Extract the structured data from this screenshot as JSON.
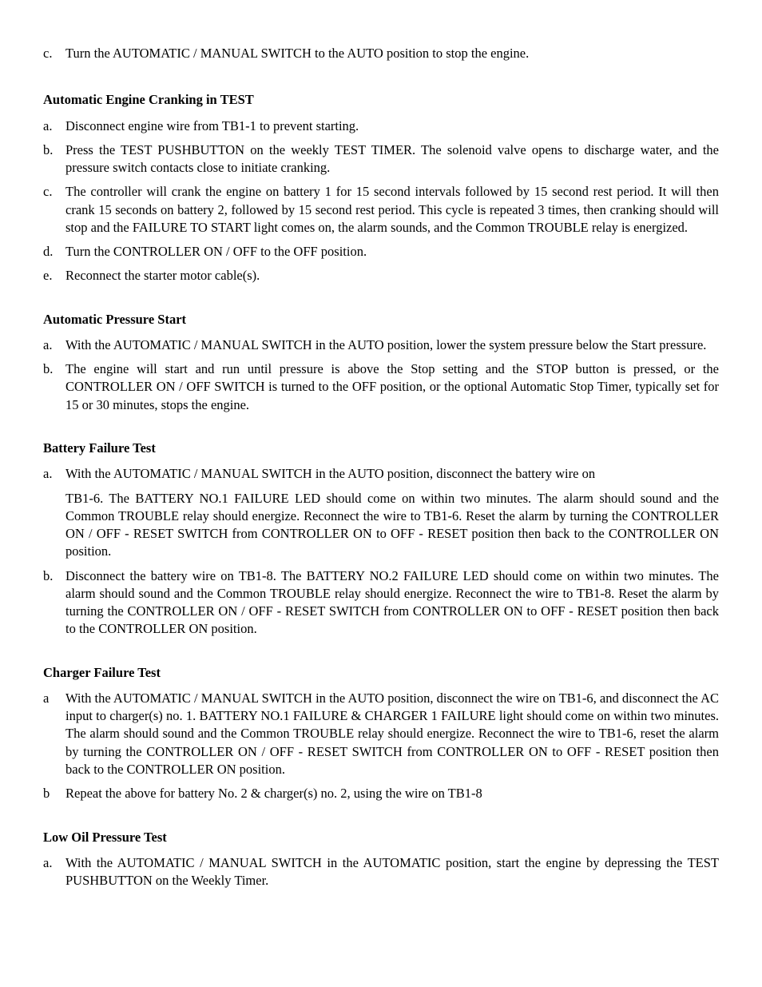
{
  "item_c_top": {
    "marker": "c.",
    "text": "Turn the AUTOMATIC / MANUAL SWITCH to the AUTO position to stop the engine."
  },
  "section1": {
    "heading": "Automatic Engine Cranking in TEST",
    "a": {
      "marker": "a.",
      "text": "Disconnect engine wire from TB1-1 to prevent starting."
    },
    "b": {
      "marker": "b.",
      "text": "Press the TEST PUSHBUTTON on the weekly TEST TIMER.  The solenoid valve opens to discharge water, and the pressure switch contacts close to initiate cranking."
    },
    "c": {
      "marker": "c.",
      "text": "The controller will crank the engine on battery 1 for 15 second intervals followed by 15 second rest period. It will then crank 15 seconds on battery 2, followed by 15 second rest period. This cycle is repeated 3 times, then cranking should will stop and the FAILURE TO START light comes on, the alarm sounds, and the Common TROUBLE relay is energized."
    },
    "d": {
      "marker": "d.",
      "text": "Turn the CONTROLLER ON / OFF to the OFF position."
    },
    "e": {
      "marker": "e.",
      "text": "Reconnect the starter motor cable(s)."
    }
  },
  "section2": {
    "heading": "Automatic Pressure Start",
    "a": {
      "marker": "a.",
      "text": "With the AUTOMATIC / MANUAL SWITCH in the AUTO position, lower the system pressure below the Start pressure."
    },
    "b": {
      "marker": "b.",
      "text": "The engine will start and run until pressure is above the Stop setting and the STOP button is pressed, or the CONTROLLER ON / OFF SWITCH is turned to the OFF position, or the optional Automatic Stop Timer, typically set for 15 or 30 minutes, stops the engine."
    }
  },
  "section3": {
    "heading": "Battery Failure Test",
    "a": {
      "marker": "a.",
      "text": "With the AUTOMATIC / MANUAL SWITCH in the AUTO position, disconnect the battery wire on"
    },
    "a_cont": "TB1-6. The BATTERY NO.1 FAILURE LED should come on within two minutes. The alarm should sound and the Common TROUBLE relay should energize. Reconnect the wire to TB1-6. Reset the alarm by turning the CONTROLLER ON / OFF - RESET SWITCH from CONTROLLER ON to OFF - RESET position then back to the CONTROLLER ON position.",
    "b": {
      "marker": "b.",
      "text": "Disconnect the battery wire on TB1-8. The BATTERY NO.2 FAILURE LED should come on within two minutes. The alarm should sound and the Common TROUBLE relay should energize. Reconnect the wire to TB1-8. Reset the alarm by turning the CONTROLLER ON / OFF - RESET SWITCH from CONTROLLER ON to OFF - RESET position then back to the CONTROLLER ON position."
    }
  },
  "section4": {
    "heading": "Charger Failure Test",
    "a": {
      "marker": "a",
      "text": "With the AUTOMATIC / MANUAL SWITCH in the AUTO position, disconnect the wire on TB1-6, and disconnect the AC input to charger(s) no. 1. BATTERY NO.1 FAILURE & CHARGER 1 FAILURE light should come on within two minutes. The alarm should sound and the Common TROUBLE relay should energize. Reconnect the wire to TB1-6, reset the alarm by turning the CONTROLLER ON / OFF - RESET SWITCH from CONTROLLER ON to OFF - RESET position then back to the CONTROLLER ON position."
    },
    "b": {
      "marker": "b",
      "text": "Repeat the above for battery No. 2 & charger(s) no. 2, using the wire on TB1-8"
    }
  },
  "section5": {
    "heading": "Low Oil Pressure Test",
    "a": {
      "marker": "a.",
      "text": "With the AUTOMATIC / MANUAL SWITCH in the AUTOMATIC position, start the engine by depressing the TEST PUSHBUTTON on the Weekly Timer."
    }
  }
}
